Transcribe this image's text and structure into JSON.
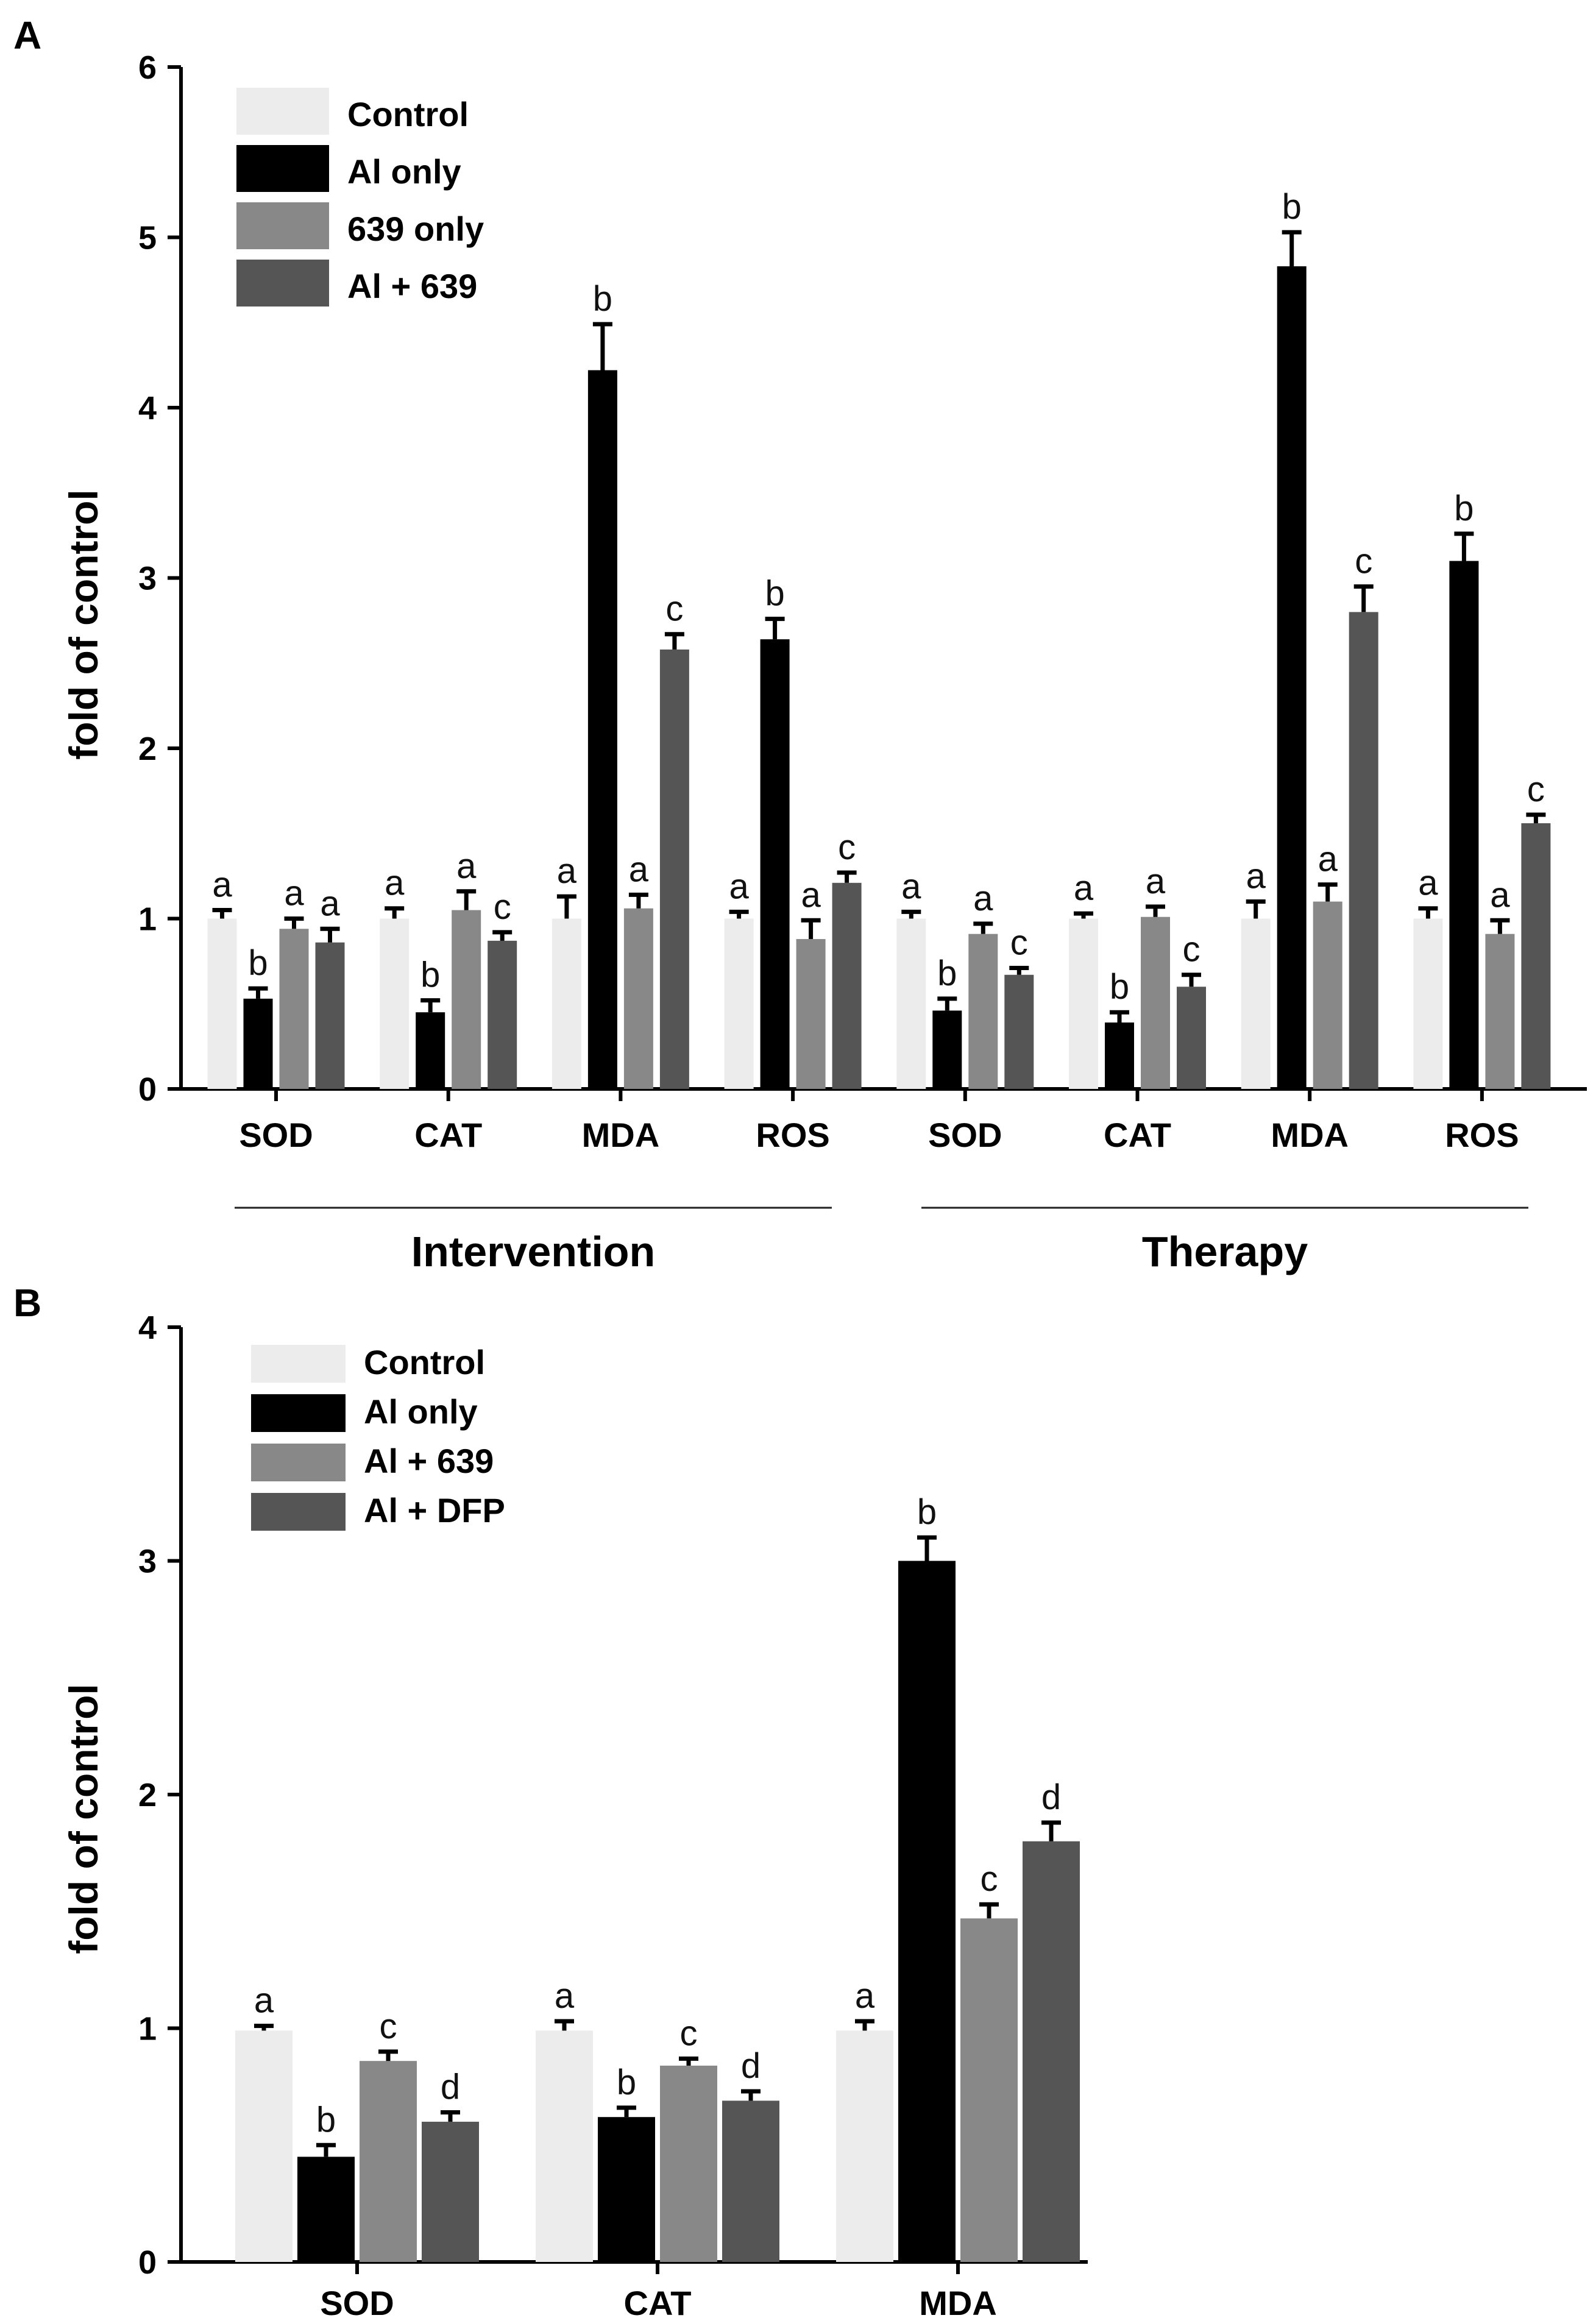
{
  "chart_data": [
    {
      "panel": "A",
      "type": "bar",
      "ylabel": "fold of control",
      "ylim": [
        0,
        6
      ],
      "yticks": [
        0,
        1,
        2,
        3,
        4,
        5,
        6
      ],
      "categories": [
        "SOD",
        "CAT",
        "MDA",
        "ROS",
        "SOD",
        "CAT",
        "MDA",
        "ROS"
      ],
      "groups": [
        {
          "label": "Intervention",
          "category_indices": [
            0,
            1,
            2,
            3
          ]
        },
        {
          "label": "Therapy",
          "category_indices": [
            4,
            5,
            6,
            7
          ]
        }
      ],
      "series": [
        {
          "name": "Control",
          "color": "#ececec",
          "values": [
            1.0,
            1.0,
            1.0,
            1.0,
            1.0,
            1.0,
            1.0,
            1.0
          ],
          "errors": [
            0.05,
            0.06,
            0.13,
            0.04,
            0.04,
            0.03,
            0.1,
            0.06
          ],
          "labels": [
            "a",
            "a",
            "a",
            "a",
            "a",
            "a",
            "a",
            "a"
          ]
        },
        {
          "name": "Al only",
          "color": "#000000",
          "values": [
            0.53,
            0.45,
            4.22,
            2.64,
            0.46,
            0.39,
            4.83,
            3.1
          ],
          "errors": [
            0.06,
            0.07,
            0.27,
            0.12,
            0.07,
            0.06,
            0.2,
            0.16
          ],
          "labels": [
            "b",
            "b",
            "b",
            "b",
            "b",
            "b",
            "b",
            "b"
          ]
        },
        {
          "name": "639 only",
          "color": "#888888",
          "values": [
            0.94,
            1.05,
            1.06,
            0.88,
            0.91,
            1.01,
            1.1,
            0.91
          ],
          "errors": [
            0.06,
            0.11,
            0.08,
            0.11,
            0.06,
            0.06,
            0.1,
            0.08
          ],
          "labels": [
            "a",
            "a",
            "a",
            "a",
            "a",
            "a",
            "a",
            "a"
          ]
        },
        {
          "name": "Al + 639",
          "color": "#555555",
          "values": [
            0.86,
            0.87,
            2.58,
            1.21,
            0.67,
            0.6,
            2.8,
            1.56
          ],
          "errors": [
            0.08,
            0.05,
            0.09,
            0.06,
            0.04,
            0.07,
            0.15,
            0.05
          ],
          "labels": [
            "a",
            "c",
            "c",
            "c",
            "c",
            "c",
            "c",
            "c"
          ]
        }
      ]
    },
    {
      "panel": "B",
      "type": "bar",
      "ylabel": "fold of control",
      "ylim": [
        0,
        4
      ],
      "yticks": [
        0,
        1,
        2,
        3,
        4
      ],
      "categories": [
        "SOD",
        "CAT",
        "MDA"
      ],
      "series": [
        {
          "name": "Control",
          "color": "#ececec",
          "values": [
            0.99,
            0.99,
            0.99
          ],
          "errors": [
            0.02,
            0.04,
            0.04
          ],
          "labels": [
            "a",
            "a",
            "a"
          ]
        },
        {
          "name": "Al only",
          "color": "#000000",
          "values": [
            0.45,
            0.62,
            3.0
          ],
          "errors": [
            0.05,
            0.04,
            0.1
          ],
          "labels": [
            "b",
            "b",
            "b"
          ]
        },
        {
          "name": "Al + 639",
          "color": "#888888",
          "values": [
            0.86,
            0.84,
            1.47
          ],
          "errors": [
            0.04,
            0.03,
            0.06
          ],
          "labels": [
            "c",
            "c",
            "c"
          ]
        },
        {
          "name": "Al + DFP",
          "color": "#555555",
          "values": [
            0.6,
            0.69,
            1.8
          ],
          "errors": [
            0.04,
            0.04,
            0.08
          ],
          "labels": [
            "d",
            "d",
            "d"
          ]
        }
      ]
    }
  ]
}
